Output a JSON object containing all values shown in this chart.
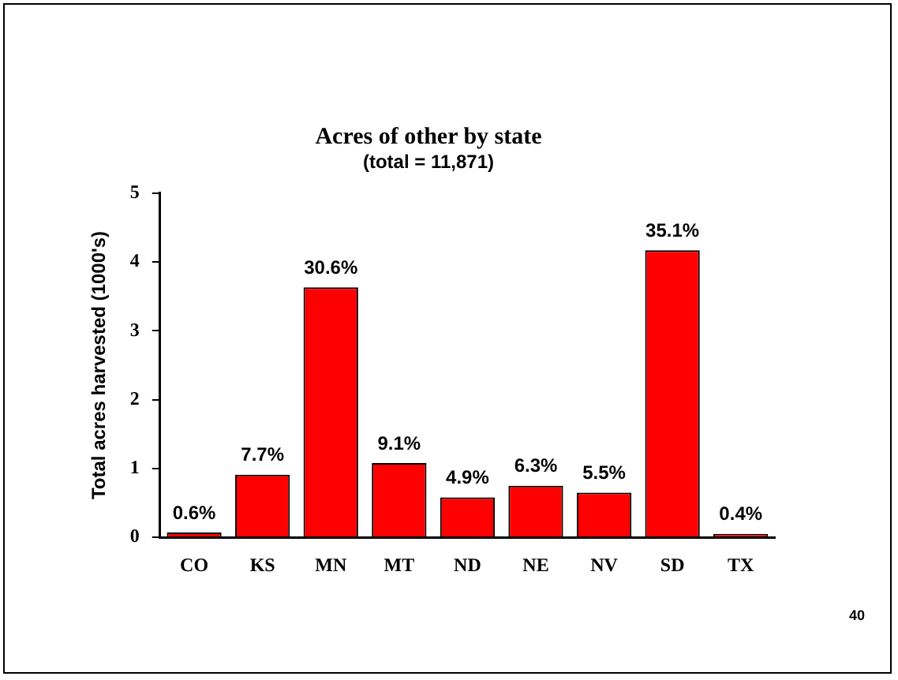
{
  "chart_data": {
    "type": "bar",
    "title": "Acres of other by state",
    "subtitle": "(total = 11,871)",
    "ylabel": "Total acres harvested (1000's)",
    "categories": [
      "CO",
      "KS",
      "MN",
      "MT",
      "ND",
      "NE",
      "NV",
      "SD",
      "TX"
    ],
    "values": [
      0.07,
      0.91,
      3.63,
      1.08,
      0.58,
      0.75,
      0.65,
      4.17,
      0.05
    ],
    "color": "#ff0000",
    "ylim": [
      0,
      5
    ],
    "yticks": [
      0,
      1,
      2,
      3,
      4,
      5
    ],
    "annotations": [
      {
        "text": "0.6%",
        "x": "CO",
        "y": 0.07
      },
      {
        "text": "7.7%",
        "x": "KS",
        "y": 0.91
      },
      {
        "text": "30.6%",
        "x": "MN",
        "y": 3.63
      },
      {
        "text": "9.1%",
        "x": "MT",
        "y": 1.08
      },
      {
        "text": "4.9%",
        "x": "ND",
        "y": 0.58
      },
      {
        "text": "6.3%",
        "x": "NE",
        "y": 0.75
      },
      {
        "text": "5.5%",
        "x": "NV",
        "y": 0.65
      },
      {
        "text": "35.1%",
        "x": "SD",
        "y": 4.17
      },
      {
        "text": "0.4%",
        "x": "TX",
        "y": 0.05
      },
      "40"
    ]
  }
}
